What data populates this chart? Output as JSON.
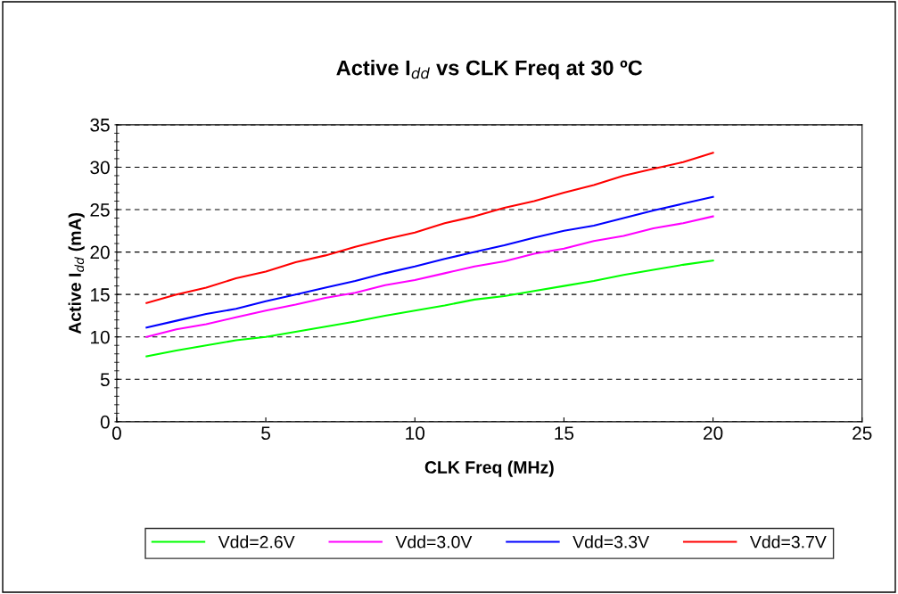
{
  "chart_data": {
    "type": "line",
    "title": "Active I$_{dd}$ vs CLK Freq at 30 ºC",
    "xlabel": "CLK Freq (MHz)",
    "ylabel": "Active I$_{dd}$ (mA)",
    "x": [
      1,
      2,
      3,
      4,
      5,
      6,
      7,
      8,
      9,
      10,
      11,
      12,
      13,
      14,
      15,
      16,
      17,
      18,
      19,
      20
    ],
    "series": [
      {
        "name": "Vdd=2.6V",
        "color": "#00ff00",
        "values": [
          7.7,
          8.4,
          9.0,
          9.6,
          10.0,
          10.6,
          11.2,
          11.8,
          12.5,
          13.1,
          13.7,
          14.4,
          14.8,
          15.4,
          16.0,
          16.6,
          17.3,
          17.9,
          18.5,
          19.0
        ]
      },
      {
        "name": "Vdd=3.0V",
        "color": "#ff00ff",
        "values": [
          10.0,
          10.9,
          11.5,
          12.3,
          13.1,
          13.8,
          14.6,
          15.2,
          16.1,
          16.7,
          17.5,
          18.3,
          18.9,
          19.8,
          20.4,
          21.3,
          21.9,
          22.8,
          23.4,
          24.2
        ]
      },
      {
        "name": "Vdd=3.3V",
        "color": "#0000ff",
        "values": [
          11.1,
          11.9,
          12.7,
          13.3,
          14.2,
          15.0,
          15.8,
          16.6,
          17.5,
          18.3,
          19.2,
          20.0,
          20.8,
          21.7,
          22.5,
          23.1,
          24.0,
          24.9,
          25.7,
          26.5
        ]
      },
      {
        "name": "Vdd=3.7V",
        "color": "#ff0000",
        "values": [
          14.0,
          15.0,
          15.8,
          16.9,
          17.7,
          18.8,
          19.6,
          20.6,
          21.5,
          22.3,
          23.4,
          24.2,
          25.2,
          26.0,
          27.0,
          27.9,
          29.0,
          29.8,
          30.6,
          31.7
        ]
      }
    ],
    "xlim": [
      0,
      25
    ],
    "xticks": [
      0,
      5,
      10,
      15,
      20,
      25
    ],
    "ylim": [
      0,
      35
    ],
    "yticks": [
      0,
      5,
      10,
      15,
      20,
      25,
      30,
      35
    ],
    "grid": "y",
    "legend": "bottom",
    "marker": "none",
    "line_style": "solid"
  }
}
